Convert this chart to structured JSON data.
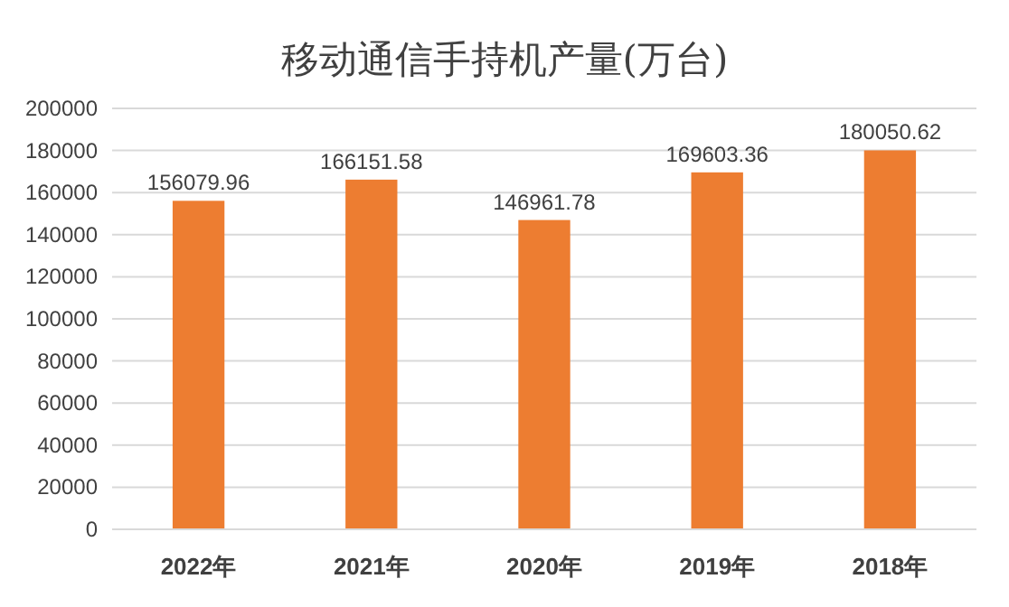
{
  "chart_data": {
    "type": "bar",
    "title": "移动通信手持机产量(万台)",
    "categories": [
      "2022年",
      "2021年",
      "2020年",
      "2019年",
      "2018年"
    ],
    "values": [
      156079.96,
      166151.58,
      146961.78,
      169603.36,
      180050.62
    ],
    "color": "#ed7d31",
    "ylim": [
      0,
      200000
    ],
    "yticks": [
      0,
      20000,
      40000,
      60000,
      80000,
      100000,
      120000,
      140000,
      160000,
      180000,
      200000
    ],
    "grid": "y",
    "data_labels": true
  }
}
